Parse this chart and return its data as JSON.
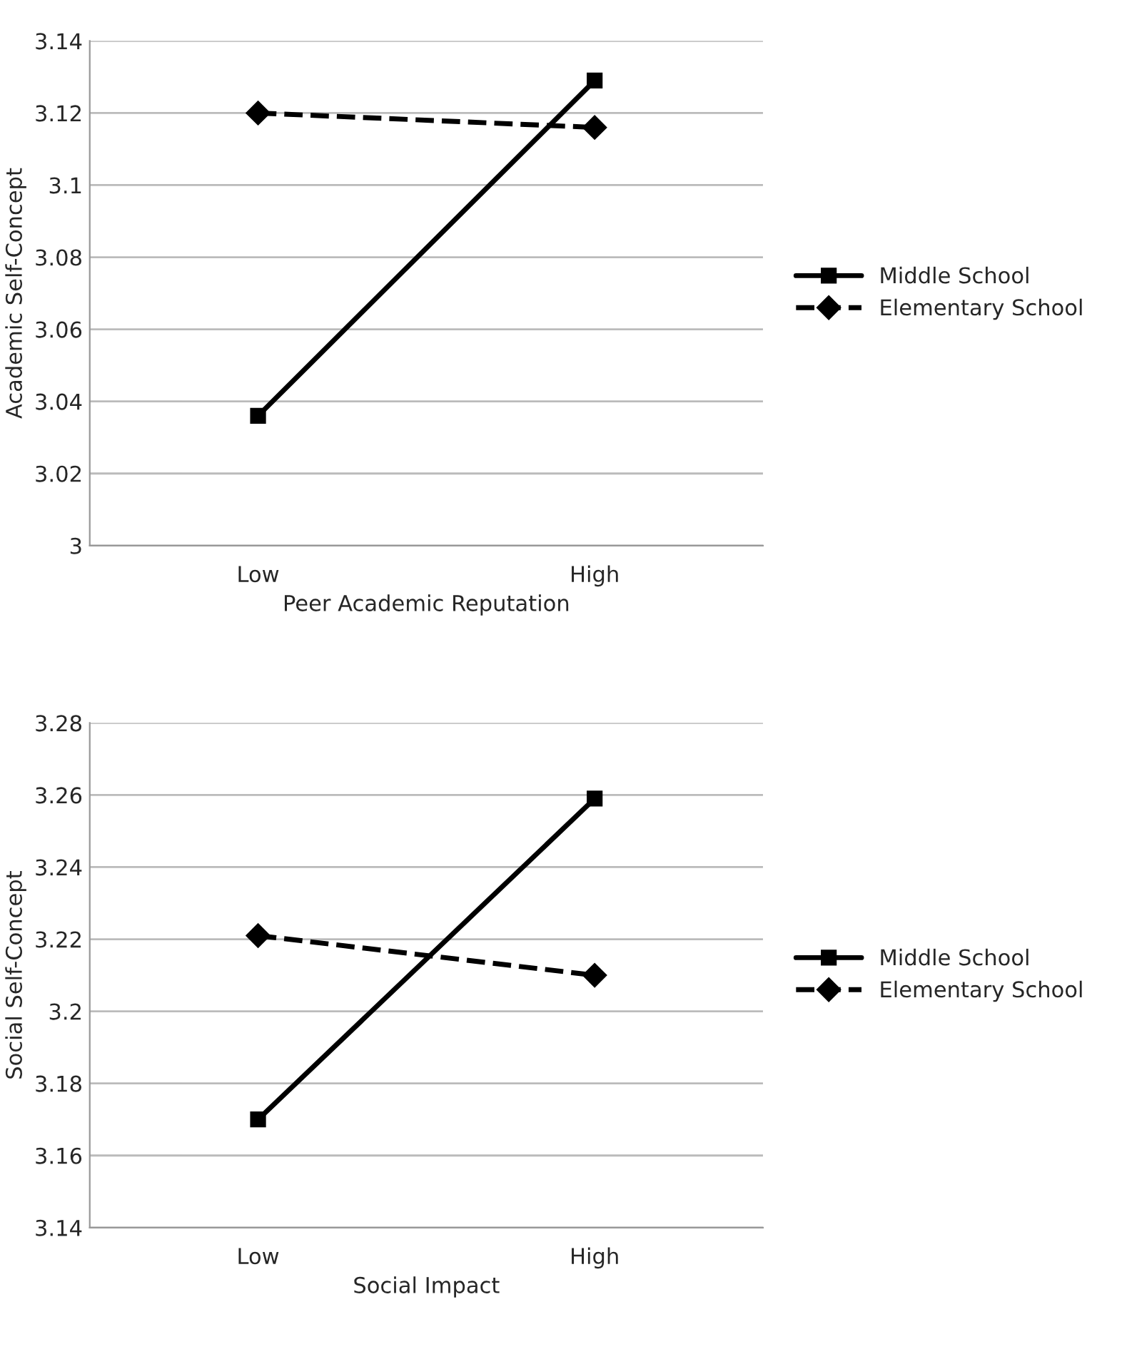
{
  "chart_data": [
    {
      "type": "line",
      "xlabel": "Peer Academic Reputation",
      "ylabel": "Academic Self-Concept",
      "categories": [
        "Low",
        "High"
      ],
      "ylim": [
        3,
        3.14
      ],
      "yticks": [
        {
          "value": 3,
          "label": "3"
        },
        3.02,
        3.04,
        3.06,
        3.08,
        {
          "value": 3.1,
          "label": "3.1"
        },
        3.12,
        3.14
      ],
      "grid": "y",
      "legend": "right",
      "series": [
        {
          "name": "Middle School",
          "color": "#000000",
          "values": [
            3.036,
            3.129
          ],
          "marker": "square",
          "line_style": "solid"
        },
        {
          "name": "Elementary School",
          "color": "#000000",
          "values": [
            3.12,
            3.116
          ],
          "marker": "diamond",
          "line_style": "dashed"
        }
      ]
    },
    {
      "type": "line",
      "xlabel": "Social Impact",
      "ylabel": "Social Self-Concept",
      "categories": [
        "Low",
        "High"
      ],
      "ylim": [
        3.14,
        3.28
      ],
      "yticks": [
        3.14,
        3.16,
        3.18,
        {
          "value": 3.2,
          "label": "3.2"
        },
        3.22,
        3.24,
        3.26,
        3.28
      ],
      "grid": "y",
      "legend": "right",
      "series": [
        {
          "name": "Middle School",
          "color": "#000000",
          "values": [
            3.17,
            3.259
          ],
          "marker": "square",
          "line_style": "solid"
        },
        {
          "name": "Elementary School",
          "color": "#000000",
          "values": [
            3.221,
            3.21
          ],
          "marker": "diamond",
          "line_style": "dashed"
        }
      ]
    }
  ]
}
